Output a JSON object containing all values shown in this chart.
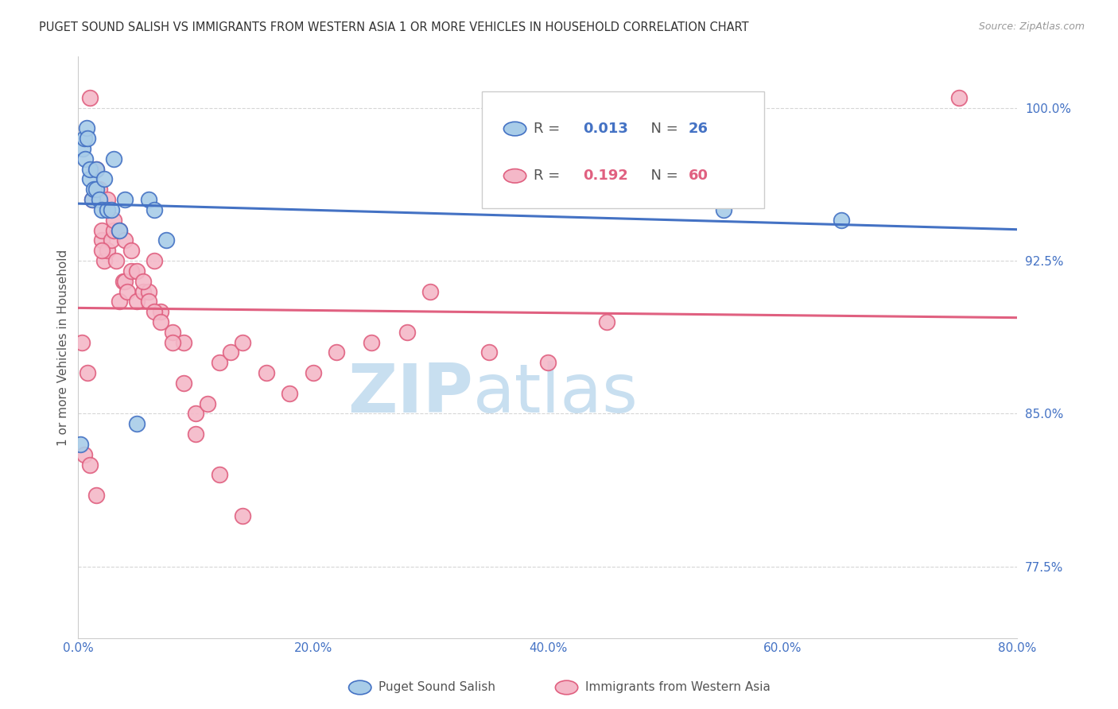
{
  "title": "PUGET SOUND SALISH VS IMMIGRANTS FROM WESTERN ASIA 1 OR MORE VEHICLES IN HOUSEHOLD CORRELATION CHART",
  "source": "Source: ZipAtlas.com",
  "xlabel_vals": [
    0.0,
    20.0,
    40.0,
    60.0,
    80.0
  ],
  "ylabel_vals": [
    77.5,
    85.0,
    92.5,
    100.0
  ],
  "xlim": [
    0.0,
    80.0
  ],
  "ylim": [
    74.0,
    102.5
  ],
  "legend_blue_r": "0.013",
  "legend_blue_n": "26",
  "legend_pink_r": "0.192",
  "legend_pink_n": "60",
  "blue_fill": "#a8cce8",
  "blue_edge": "#4472c4",
  "pink_fill": "#f4b8c8",
  "pink_edge": "#e06080",
  "blue_line_color": "#4472c4",
  "pink_line_color": "#e06080",
  "ylabel": "1 or more Vehicles in Household",
  "blue_scatter_x": [
    0.2,
    0.4,
    0.5,
    0.6,
    0.7,
    0.8,
    1.0,
    1.0,
    1.2,
    1.3,
    1.5,
    1.5,
    1.8,
    2.0,
    2.2,
    2.5,
    2.8,
    3.0,
    3.5,
    4.0,
    5.0,
    6.0,
    6.5,
    7.5,
    55.0,
    65.0
  ],
  "blue_scatter_y": [
    83.5,
    98.0,
    98.5,
    97.5,
    99.0,
    98.5,
    96.5,
    97.0,
    95.5,
    96.0,
    96.0,
    97.0,
    95.5,
    95.0,
    96.5,
    95.0,
    95.0,
    97.5,
    94.0,
    95.5,
    84.5,
    95.5,
    95.0,
    93.5,
    95.0,
    94.5
  ],
  "pink_scatter_x": [
    0.3,
    0.5,
    0.8,
    1.0,
    1.2,
    1.5,
    1.8,
    2.0,
    2.0,
    2.2,
    2.5,
    2.8,
    3.0,
    3.2,
    3.5,
    3.8,
    4.0,
    4.2,
    4.5,
    5.0,
    5.5,
    6.0,
    6.5,
    7.0,
    8.0,
    9.0,
    10.0,
    11.0,
    12.0,
    13.0,
    14.0,
    16.0,
    18.0,
    20.0,
    22.0,
    25.0,
    28.0,
    30.0,
    35.0,
    40.0,
    45.0,
    75.0,
    1.0,
    1.5,
    2.0,
    2.5,
    3.0,
    3.5,
    4.0,
    4.5,
    5.0,
    5.5,
    6.0,
    6.5,
    7.0,
    8.0,
    9.0,
    10.0,
    12.0,
    14.0
  ],
  "pink_scatter_y": [
    88.5,
    83.0,
    87.0,
    100.5,
    95.5,
    97.0,
    96.0,
    93.5,
    94.0,
    92.5,
    93.0,
    93.5,
    94.0,
    92.5,
    90.5,
    91.5,
    91.5,
    91.0,
    92.0,
    90.5,
    91.0,
    91.0,
    92.5,
    90.0,
    89.0,
    88.5,
    85.0,
    85.5,
    87.5,
    88.0,
    88.5,
    87.0,
    86.0,
    87.0,
    88.0,
    88.5,
    89.0,
    91.0,
    88.0,
    87.5,
    89.5,
    100.5,
    82.5,
    81.0,
    93.0,
    95.5,
    94.5,
    94.0,
    93.5,
    93.0,
    92.0,
    91.5,
    90.5,
    90.0,
    89.5,
    88.5,
    86.5,
    84.0,
    82.0,
    80.0
  ],
  "background_color": "#ffffff",
  "grid_color": "#cccccc",
  "title_color": "#333333",
  "axis_label_color": "#4472c4",
  "watermark_zip": "ZIP",
  "watermark_atlas": "atlas",
  "watermark_color_zip": "#c8dff0",
  "watermark_color_atlas": "#c8dff0"
}
